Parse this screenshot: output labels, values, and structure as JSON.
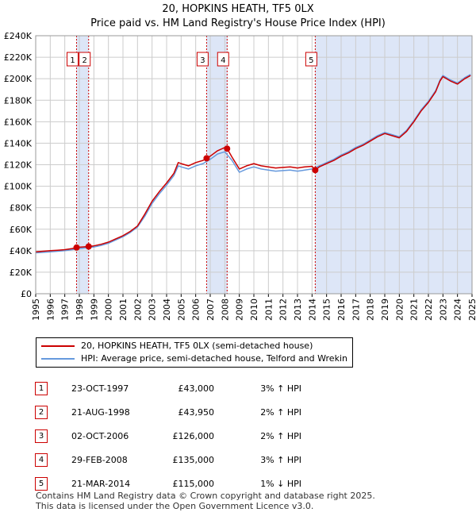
{
  "title": "20, HOPKINS HEATH, TF5 0LX",
  "subtitle": "Price paid vs. HM Land Registry's House Price Index (HPI)",
  "colors": {
    "price_line": "#cc0000",
    "hpi_line": "#6699dd",
    "shade": "#dde6f7",
    "grid": "#cccccc",
    "marker": "#cc0000"
  },
  "chart_data": {
    "type": "line",
    "title": "20, HOPKINS HEATH, TF5 0LX",
    "subtitle": "Price paid vs. HM Land Registry's House Price Index (HPI)",
    "xlabel": "",
    "ylabel": "",
    "xlim": [
      1995,
      2025
    ],
    "ylim": [
      0,
      240000
    ],
    "grid": true,
    "x_ticks": [
      "1995",
      "1996",
      "1997",
      "1998",
      "1999",
      "2000",
      "2001",
      "2002",
      "2003",
      "2004",
      "2005",
      "2006",
      "2007",
      "2008",
      "2009",
      "2010",
      "2011",
      "2012",
      "2013",
      "2014",
      "2015",
      "2016",
      "2017",
      "2018",
      "2019",
      "2020",
      "2021",
      "2022",
      "2023",
      "2024",
      "2025"
    ],
    "y_ticks": [
      "£0",
      "£20K",
      "£40K",
      "£60K",
      "£80K",
      "£100K",
      "£120K",
      "£140K",
      "£160K",
      "£180K",
      "£200K",
      "£220K",
      "£240K"
    ],
    "shaded_spans": [
      [
        1997.8,
        1998.65
      ],
      [
        2006.75,
        2008.2
      ],
      [
        2014.2,
        2025.0
      ]
    ],
    "series": [
      {
        "name": "20, HOPKINS HEATH, TF5 0LX (semi-detached house)",
        "color": "#cc0000",
        "x": [
          1995.0,
          1995.5,
          1996.0,
          1996.5,
          1997.0,
          1997.5,
          1997.81,
          1998.0,
          1998.3,
          1998.64,
          1999.0,
          1999.5,
          2000.0,
          2000.5,
          2001.0,
          2001.5,
          2002.0,
          2002.5,
          2003.0,
          2003.5,
          2004.0,
          2004.5,
          2004.8,
          2005.0,
          2005.5,
          2006.0,
          2006.5,
          2006.75,
          2007.0,
          2007.5,
          2008.0,
          2008.16,
          2008.5,
          2009.0,
          2009.5,
          2010.0,
          2010.5,
          2011.0,
          2011.5,
          2012.0,
          2012.5,
          2013.0,
          2013.5,
          2014.0,
          2014.22,
          2014.5,
          2015.0,
          2015.5,
          2016.0,
          2016.5,
          2017.0,
          2017.5,
          2018.0,
          2018.5,
          2019.0,
          2019.5,
          2020.0,
          2020.5,
          2021.0,
          2021.5,
          2022.0,
          2022.5,
          2022.8,
          2023.0,
          2023.5,
          2024.0,
          2024.5,
          2024.9
        ],
        "values": [
          39000,
          39500,
          40000,
          40500,
          41000,
          42000,
          43000,
          43300,
          43600,
          43950,
          44500,
          46000,
          48000,
          51000,
          54000,
          58000,
          63000,
          74000,
          86000,
          95000,
          103000,
          112000,
          122000,
          121000,
          119000,
          122000,
          124000,
          126000,
          128000,
          133000,
          136000,
          135000,
          127000,
          116000,
          119000,
          121000,
          119000,
          118000,
          117000,
          117500,
          118000,
          117000,
          118000,
          118500,
          115000,
          118000,
          121000,
          124000,
          128000,
          131000,
          135000,
          138000,
          142000,
          146000,
          149000,
          147000,
          145000,
          151000,
          160000,
          170000,
          178000,
          188000,
          198000,
          202000,
          198000,
          195000,
          200000,
          203000
        ]
      },
      {
        "name": "HPI: Average price, semi-detached house, Telford and Wrekin",
        "color": "#6699dd",
        "x": [
          1995.0,
          1995.5,
          1996.0,
          1996.5,
          1997.0,
          1997.5,
          1998.0,
          1998.5,
          1999.0,
          1999.5,
          2000.0,
          2000.5,
          2001.0,
          2001.5,
          2002.0,
          2002.5,
          2003.0,
          2003.5,
          2004.0,
          2004.5,
          2004.8,
          2005.0,
          2005.5,
          2006.0,
          2006.5,
          2007.0,
          2007.5,
          2008.0,
          2008.5,
          2009.0,
          2009.5,
          2010.0,
          2010.5,
          2011.0,
          2011.5,
          2012.0,
          2012.5,
          2013.0,
          2013.5,
          2014.0,
          2014.5,
          2015.0,
          2015.5,
          2016.0,
          2016.5,
          2017.0,
          2017.5,
          2018.0,
          2018.5,
          2019.0,
          2019.5,
          2020.0,
          2020.5,
          2021.0,
          2021.5,
          2022.0,
          2022.5,
          2022.8,
          2023.0,
          2023.5,
          2024.0,
          2024.5,
          2024.9
        ],
        "values": [
          38000,
          38500,
          39000,
          39500,
          40000,
          41000,
          42000,
          42800,
          43500,
          45000,
          47000,
          50000,
          53000,
          57000,
          62000,
          72000,
          84000,
          93000,
          101000,
          110000,
          119000,
          118000,
          116000,
          119000,
          121000,
          125000,
          130000,
          132000,
          124000,
          113000,
          116000,
          118000,
          116000,
          115000,
          114000,
          114500,
          115000,
          114000,
          115000,
          116000,
          119000,
          122000,
          125000,
          129000,
          132000,
          136000,
          139000,
          143000,
          147000,
          150000,
          148000,
          146000,
          152000,
          161000,
          171000,
          179000,
          189000,
          199000,
          203000,
          199000,
          196000,
          201000,
          204000
        ]
      }
    ],
    "sales": [
      {
        "num": "1",
        "date": "23-OCT-1997",
        "year": 1997.81,
        "price": "£43,000",
        "price_value": 43000,
        "hpi": "3% ↑ HPI"
      },
      {
        "num": "2",
        "date": "21-AUG-1998",
        "year": 1998.64,
        "price": "£43,950",
        "price_value": 43950,
        "hpi": "2% ↑ HPI"
      },
      {
        "num": "3",
        "date": "02-OCT-2006",
        "year": 2006.75,
        "price": "£126,000",
        "price_value": 126000,
        "hpi": "2% ↑ HPI"
      },
      {
        "num": "4",
        "date": "29-FEB-2008",
        "year": 2008.16,
        "price": "£135,000",
        "price_value": 135000,
        "hpi": "3% ↑ HPI"
      },
      {
        "num": "5",
        "date": "21-MAR-2014",
        "year": 2014.22,
        "price": "£115,000",
        "price_value": 115000,
        "hpi": "1% ↓ HPI"
      }
    ]
  },
  "legend": {
    "price_label": "20, HOPKINS HEATH, TF5 0LX (semi-detached house)",
    "hpi_label": "HPI: Average price, semi-detached house, Telford and Wrekin"
  },
  "footer": {
    "line1": "Contains HM Land Registry data © Crown copyright and database right 2025.",
    "line2": "This data is licensed under the Open Government Licence v3.0."
  }
}
